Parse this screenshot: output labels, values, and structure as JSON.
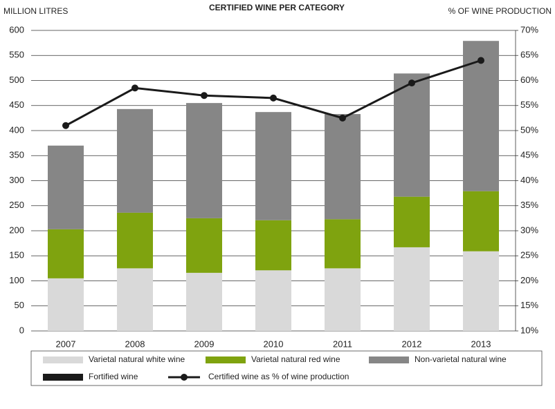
{
  "chart_data": {
    "type": "bar",
    "title": "CERTIFIED WINE PER CATEGORY",
    "y_label": "MILLION LITRES",
    "y2_label": "% OF WINE PRODUCTION",
    "categories": [
      "2007",
      "2008",
      "2009",
      "2010",
      "2011",
      "2012",
      "2013"
    ],
    "stacked": true,
    "series": [
      {
        "name": "Varietal natural white wine",
        "color": "#d9d9d9",
        "values": [
          105,
          125,
          116,
          121,
          125,
          167,
          159
        ]
      },
      {
        "name": "Varietal natural red wine",
        "color": "#7fa30f",
        "values": [
          98,
          111,
          109,
          100,
          98,
          101,
          120
        ]
      },
      {
        "name": "Non-varietal natural wine",
        "color": "#868686",
        "values": [
          167,
          207,
          230,
          216,
          210,
          246,
          300
        ]
      },
      {
        "name": "Fortified wine",
        "color": "#1a1a1a",
        "values": [
          0,
          0,
          0,
          0,
          0,
          0,
          0
        ]
      },
      {
        "name": "Certified wine as % of wine production",
        "color": "#1a1a1a",
        "type": "line",
        "axis": "y2",
        "values": [
          51,
          58.5,
          57,
          56.5,
          52.5,
          59.5,
          64
        ]
      }
    ],
    "ylim": [
      0,
      600
    ],
    "yticks": [
      0,
      50,
      100,
      150,
      200,
      250,
      300,
      350,
      400,
      450,
      500,
      550,
      600
    ],
    "y2lim": [
      10,
      70
    ],
    "y2ticks": [
      {
        "value": 10,
        "label": "10%"
      },
      {
        "value": 15,
        "label": "15%"
      },
      {
        "value": 20,
        "label": "20%"
      },
      {
        "value": 25,
        "label": "25%"
      },
      {
        "value": 30,
        "label": "30%"
      },
      {
        "value": 35,
        "label": "35%"
      },
      {
        "value": 40,
        "label": "40%"
      },
      {
        "value": 45,
        "label": "45%"
      },
      {
        "value": 50,
        "label": "50%"
      },
      {
        "value": 55,
        "label": "55%"
      },
      {
        "value": 60,
        "label": "60%"
      },
      {
        "value": 65,
        "label": "65%"
      },
      {
        "value": 70,
        "label": "70%"
      }
    ],
    "grid": true,
    "legend": "bottom"
  }
}
